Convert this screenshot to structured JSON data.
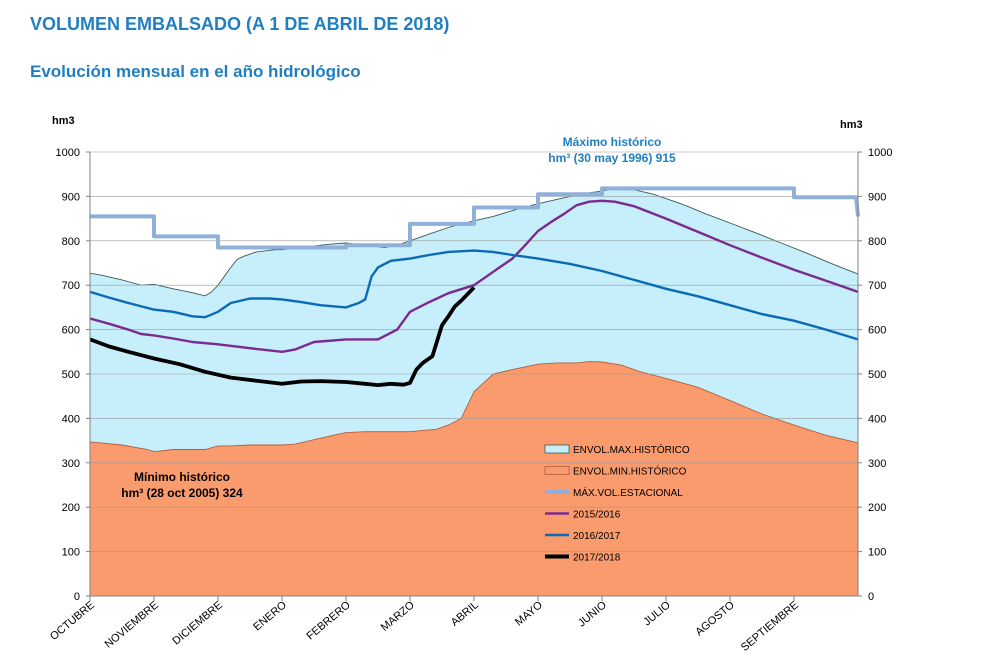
{
  "title": "VOLUMEN EMBALSADO (A 1 DE ABRIL DE 2018)",
  "subtitle": "Evolución mensual en el año hidrológico",
  "chart_data": {
    "type": "line",
    "ylabel": "hm3",
    "ylabel_right": "hm3",
    "ylim": [
      0,
      1000
    ],
    "yticks": [
      0,
      100,
      200,
      300,
      400,
      500,
      600,
      700,
      800,
      900,
      1000
    ],
    "xlim": [
      0,
      12
    ],
    "categories": [
      "OCTUBRE",
      "NOVIEMBRE",
      "DICIEMBRE",
      "ENERO",
      "FEBRERO",
      "MARZO",
      "ABRIL",
      "MAYO",
      "JUNIO",
      "JULIO",
      "AGOSTO",
      "SEPTIEMBRE"
    ],
    "grid": "horizontal",
    "legend_position": "center-right",
    "annotations": [
      {
        "lines": [
          "Máximo histórico",
          "hm³ (30 may 1996) 915"
        ],
        "color": "#1f7fc2",
        "anchor": "upper-center"
      },
      {
        "lines": [
          "Mínimo histórico",
          "hm³ (28 oct 2005) 324"
        ],
        "color": "#000000",
        "anchor": "lower-left"
      }
    ],
    "series": [
      {
        "name": "ENVOL.MAX.HISTÓRICO",
        "kind": "area",
        "color": "#c6eefb",
        "edge": "#3a5a5a",
        "x": [
          0,
          0.2,
          0.5,
          0.8,
          1,
          1.3,
          1.6,
          1.8,
          1.9,
          2,
          2.1,
          2.2,
          2.3,
          2.4,
          2.6,
          2.9,
          3,
          3.3,
          3.6,
          3.8,
          4,
          4.3,
          4.6,
          4.8,
          5,
          5.3,
          5.6,
          5.8,
          6,
          6.3,
          6.6,
          6.9,
          7.2,
          7.5,
          7.8,
          8,
          8.2,
          8.5,
          8.8,
          9,
          9.3,
          9.6,
          10,
          10.4,
          10.8,
          11.2,
          11.6,
          12
        ],
        "y": [
          727,
          722,
          712,
          700,
          702,
          692,
          683,
          676,
          685,
          700,
          720,
          740,
          758,
          765,
          775,
          780,
          780,
          785,
          790,
          793,
          795,
          790,
          785,
          790,
          800,
          815,
          830,
          838,
          845,
          855,
          868,
          880,
          890,
          900,
          908,
          912,
          918,
          915,
          905,
          895,
          880,
          862,
          840,
          818,
          795,
          772,
          748,
          725
        ]
      },
      {
        "name": "ENVOL.MIN.HISTÓRICO",
        "kind": "area",
        "color": "#fa9b6d",
        "edge": "#b06040",
        "x": [
          0,
          0.5,
          0.9,
          1,
          1.3,
          1.5,
          1.8,
          2,
          2.2,
          2.5,
          3,
          3.2,
          3.5,
          3.8,
          4,
          4.3,
          4.6,
          5,
          5.2,
          5.4,
          5.6,
          5.8,
          6,
          6.3,
          6.6,
          7,
          7.3,
          7.6,
          7.8,
          8,
          8.3,
          8.6,
          9,
          9.5,
          10,
          10.5,
          11,
          11.5,
          12
        ],
        "y": [
          347,
          340,
          330,
          325,
          330,
          330,
          330,
          338,
          338,
          340,
          340,
          342,
          352,
          362,
          368,
          370,
          370,
          370,
          373,
          375,
          385,
          400,
          460,
          500,
          510,
          522,
          525,
          525,
          528,
          527,
          520,
          505,
          490,
          470,
          440,
          410,
          385,
          362,
          345
        ]
      },
      {
        "name": "MÁX.VOL.ESTACIONAL",
        "kind": "step",
        "color": "#8fb0d9",
        "x": [
          0,
          1,
          1,
          2,
          2,
          3,
          3,
          4,
          4,
          5,
          5,
          6,
          6,
          7,
          7,
          8,
          8,
          11,
          11,
          11.97,
          12
        ],
        "y": [
          855,
          855,
          810,
          810,
          785,
          785,
          785,
          785,
          790,
          790,
          838,
          838,
          875,
          875,
          905,
          905,
          918,
          918,
          898,
          898,
          855
        ]
      },
      {
        "name": "2015/2016",
        "kind": "line",
        "color": "#7b2a8f",
        "x": [
          0,
          0.3,
          0.6,
          0.8,
          1,
          1.3,
          1.6,
          2,
          2.5,
          3,
          3.2,
          3.5,
          4,
          4.5,
          4.8,
          5,
          5.3,
          5.6,
          6,
          6.2,
          6.4,
          6.6,
          6.8,
          7,
          7.2,
          7.4,
          7.6,
          7.8,
          8,
          8.2,
          8.5,
          9,
          9.5,
          10,
          10.5,
          11,
          11.5,
          12
        ],
        "y": [
          625,
          613,
          600,
          590,
          587,
          580,
          572,
          567,
          558,
          550,
          555,
          572,
          578,
          578,
          600,
          640,
          662,
          682,
          700,
          720,
          740,
          760,
          790,
          822,
          842,
          860,
          880,
          888,
          890,
          888,
          878,
          850,
          820,
          790,
          762,
          735,
          710,
          685
        ]
      },
      {
        "name": "2016/2017",
        "kind": "line",
        "color": "#0b6ab5",
        "x": [
          0,
          0.3,
          0.6,
          1,
          1.3,
          1.6,
          1.8,
          2,
          2.2,
          2.5,
          2.8,
          3,
          3.3,
          3.6,
          4,
          4.2,
          4.3,
          4.4,
          4.5,
          4.7,
          5,
          5.3,
          5.6,
          6,
          6.3,
          6.6,
          7,
          7.5,
          8,
          8.5,
          9,
          9.5,
          10,
          10.5,
          11,
          11.5,
          12
        ],
        "y": [
          685,
          672,
          660,
          645,
          640,
          630,
          628,
          640,
          660,
          670,
          670,
          668,
          662,
          655,
          650,
          660,
          668,
          720,
          740,
          755,
          760,
          768,
          775,
          778,
          775,
          768,
          760,
          748,
          732,
          712,
          692,
          675,
          655,
          635,
          620,
          600,
          578
        ]
      },
      {
        "name": "2017/2018",
        "kind": "line",
        "color": "#000000",
        "x": [
          0,
          0.3,
          0.6,
          1,
          1.4,
          1.8,
          2.2,
          2.6,
          3,
          3.3,
          3.6,
          4,
          4.3,
          4.5,
          4.7,
          4.9,
          5,
          5.1,
          5.2,
          5.35,
          5.5,
          5.6,
          5.7,
          5.8,
          5.9,
          6
        ],
        "y": [
          578,
          562,
          550,
          535,
          522,
          505,
          492,
          485,
          478,
          483,
          484,
          482,
          478,
          475,
          478,
          476,
          480,
          510,
          525,
          540,
          610,
          630,
          652,
          665,
          680,
          695
        ]
      }
    ]
  }
}
